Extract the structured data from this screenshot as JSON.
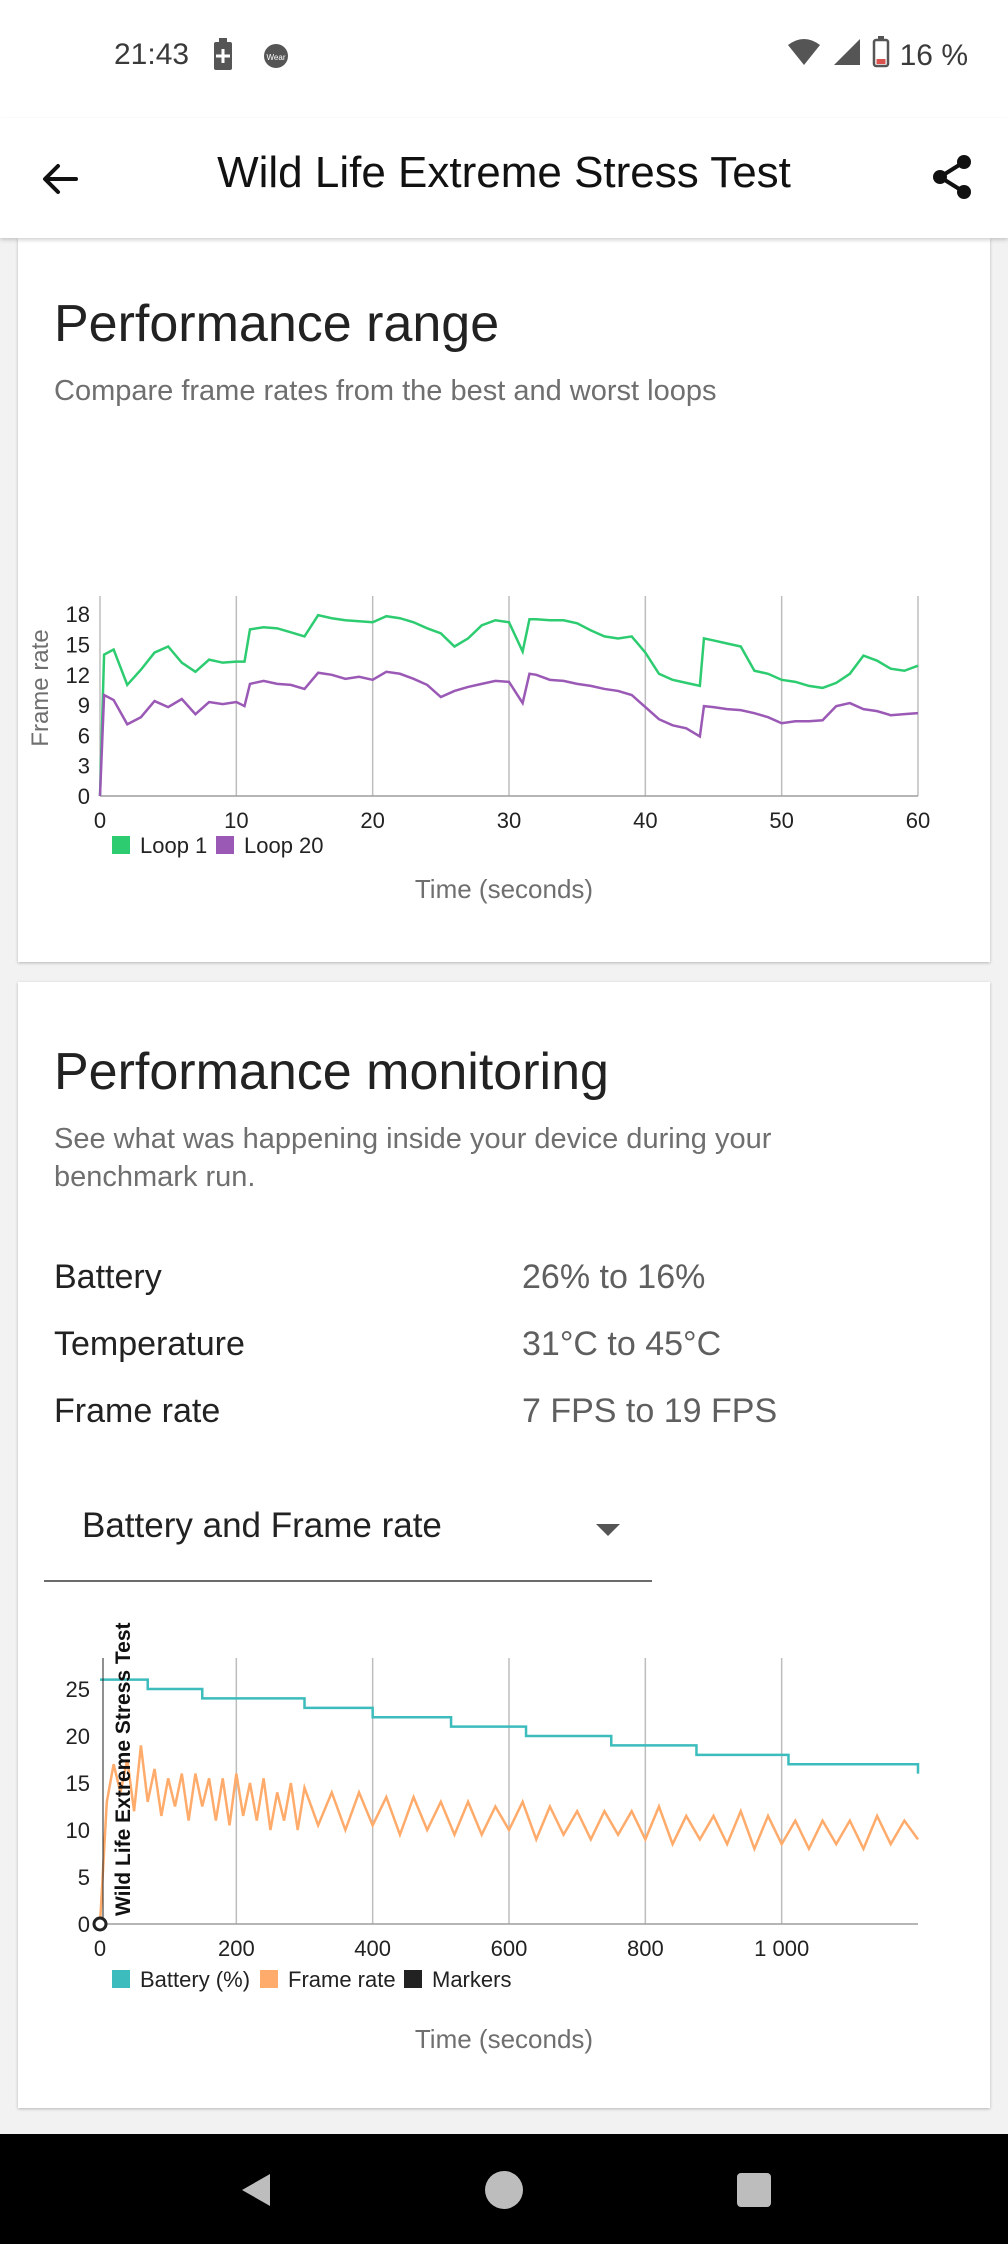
{
  "status_bar": {
    "time": "21:43",
    "battery_percent": "16 %",
    "icons": [
      "battery-saver-icon",
      "wear-os-icon",
      "wifi-icon",
      "signal-icon",
      "battery-icon"
    ]
  },
  "app_bar": {
    "title": "Wild Life Extreme Stress Test",
    "back_icon": "arrow-left-icon",
    "share_icon": "share-icon"
  },
  "performance_range": {
    "title": "Performance range",
    "subtitle": "Compare frame rates from the best and worst loops",
    "legend": [
      "Loop 1",
      "Loop 20"
    ],
    "xlabel": "Time (seconds)",
    "ylabel": "Frame rate"
  },
  "performance_monitoring": {
    "title": "Performance monitoring",
    "subtitle": "See what was happening inside your device during your benchmark run.",
    "stats": [
      {
        "label": "Battery",
        "value": "26% to 16%"
      },
      {
        "label": "Temperature",
        "value": "31°C to 45°C"
      },
      {
        "label": "Frame rate",
        "value": "7 FPS to 19 FPS"
      }
    ],
    "dropdown": {
      "selected": "Battery and Frame rate"
    },
    "marker_label": "Wild Life Extreme Stress Test",
    "legend": [
      "Battery (%)",
      "Frame rate",
      "Markers"
    ],
    "xlabel": "Time (seconds)"
  },
  "colors": {
    "loop1": "#2ecc71",
    "loop20": "#9b59b6",
    "battery": "#3cbcbc",
    "framerate": "#ffab6b",
    "markers": "#222222"
  },
  "chart_data": [
    {
      "type": "line",
      "title": "",
      "xlabel": "Time (seconds)",
      "ylabel": "Frame rate",
      "xlim": [
        0,
        60
      ],
      "ylim": [
        0,
        20
      ],
      "xticks": [
        "0",
        "10",
        "20",
        "30",
        "40",
        "50",
        "60"
      ],
      "yticks": [
        "0",
        "3",
        "6",
        "9",
        "12",
        "15",
        "18"
      ],
      "legend_position": "bottom-left",
      "grid": "vertical",
      "series": [
        {
          "name": "Loop 1",
          "x": [
            0,
            0.3,
            1,
            2,
            3,
            4,
            5,
            6,
            7,
            8,
            9,
            10,
            10.6,
            11,
            12,
            13,
            14,
            15,
            16,
            17,
            18,
            19,
            20,
            21,
            22,
            23,
            24,
            25,
            26,
            27,
            28,
            29,
            30,
            31,
            31.5,
            32,
            33,
            34,
            35,
            36,
            37,
            38,
            39,
            40,
            41,
            42,
            43,
            44,
            44.3,
            45,
            46,
            47,
            48,
            49,
            50,
            51,
            52,
            53,
            54,
            55,
            56,
            57,
            58,
            59,
            60
          ],
          "y": [
            0,
            14,
            14.5,
            11,
            12.5,
            14.2,
            14.8,
            13.2,
            12.3,
            13.5,
            13.2,
            13.3,
            13.3,
            16.5,
            16.7,
            16.6,
            16.2,
            15.8,
            17.9,
            17.6,
            17.4,
            17.3,
            17.2,
            17.8,
            17.6,
            17.2,
            16.6,
            16.1,
            14.8,
            15.6,
            16.9,
            17.4,
            17.2,
            14.3,
            17.5,
            17.5,
            17.4,
            17.4,
            17.1,
            16.4,
            15.8,
            15.6,
            15.8,
            14.2,
            12.1,
            11.5,
            11.2,
            10.9,
            15.6,
            15.4,
            15.1,
            14.8,
            12.4,
            12.1,
            11.5,
            11.3,
            10.9,
            10.7,
            11.2,
            12.1,
            13.9,
            13.4,
            12.6,
            12.4,
            12.9
          ]
        },
        {
          "name": "Loop 20",
          "x": [
            0,
            0.3,
            1,
            2,
            3,
            4,
            5,
            6,
            7,
            8,
            9,
            10,
            10.6,
            11,
            12,
            13,
            14,
            15,
            16,
            17,
            18,
            19,
            20,
            21,
            22,
            23,
            24,
            25,
            26,
            27,
            28,
            29,
            30,
            31,
            31.5,
            32,
            33,
            34,
            35,
            36,
            37,
            38,
            39,
            40,
            41,
            42,
            43,
            44,
            44.3,
            45,
            46,
            47,
            48,
            49,
            50,
            51,
            52,
            53,
            54,
            55,
            56,
            57,
            58,
            59,
            60
          ],
          "y": [
            0,
            10,
            9.5,
            7.1,
            7.8,
            9.4,
            8.8,
            9.6,
            8.1,
            9.3,
            9.1,
            9.3,
            8.9,
            11.1,
            11.4,
            11.1,
            11.0,
            10.6,
            12.2,
            12.0,
            11.6,
            11.8,
            11.5,
            12.3,
            12.1,
            11.6,
            11.0,
            9.8,
            10.4,
            10.8,
            11.1,
            11.4,
            11.3,
            9.2,
            12.1,
            12.0,
            11.5,
            11.4,
            11.1,
            10.9,
            10.6,
            10.4,
            10.0,
            8.8,
            7.6,
            7.0,
            6.7,
            5.9,
            8.9,
            8.8,
            8.6,
            8.5,
            8.2,
            7.8,
            7.2,
            7.4,
            7.4,
            7.5,
            8.9,
            9.2,
            8.6,
            8.4,
            8.0,
            8.1,
            8.2
          ]
        }
      ]
    },
    {
      "type": "line",
      "title": "",
      "xlabel": "Time (seconds)",
      "ylabel": "",
      "xlim": [
        0,
        1200
      ],
      "ylim": [
        0,
        28
      ],
      "xticks": [
        "0",
        "200",
        "400",
        "600",
        "800",
        "1 000"
      ],
      "yticks": [
        "0",
        "5",
        "10",
        "15",
        "20",
        "25"
      ],
      "legend_position": "bottom-left",
      "grid": "vertical",
      "series": [
        {
          "name": "Battery (%)",
          "x": [
            0,
            70,
            150,
            300,
            400,
            515,
            625,
            750,
            875,
            1010,
            1200
          ],
          "y": [
            26,
            25,
            24,
            23,
            22,
            21,
            20,
            19,
            18,
            17,
            16
          ]
        },
        {
          "name": "Frame rate",
          "x": [
            0,
            10,
            20,
            30,
            40,
            50,
            60,
            70,
            80,
            90,
            100,
            110,
            120,
            130,
            140,
            150,
            160,
            170,
            180,
            190,
            200,
            210,
            220,
            230,
            240,
            250,
            260,
            270,
            280,
            290,
            300,
            320,
            340,
            360,
            380,
            400,
            420,
            440,
            460,
            480,
            500,
            520,
            540,
            560,
            580,
            600,
            620,
            640,
            660,
            680,
            700,
            720,
            740,
            760,
            780,
            800,
            820,
            840,
            860,
            880,
            900,
            920,
            940,
            960,
            980,
            1000,
            1020,
            1040,
            1060,
            1080,
            1100,
            1120,
            1140,
            1160,
            1180,
            1200
          ],
          "y": [
            0,
            13,
            17,
            14,
            17.5,
            12,
            19,
            13,
            16.5,
            11.5,
            15.5,
            12.5,
            16,
            11,
            16,
            12.5,
            15.5,
            11,
            15.5,
            10.5,
            16,
            11.5,
            15,
            11,
            15.5,
            10,
            14,
            11,
            15,
            10,
            14.5,
            10.5,
            14,
            10,
            14,
            10.5,
            13.5,
            9.5,
            13.5,
            10,
            13,
            9.5,
            13,
            9.5,
            12.5,
            10,
            13,
            9,
            12.5,
            9.5,
            12,
            9,
            12,
            9.5,
            12,
            9,
            12.5,
            8.5,
            11.5,
            9,
            11.5,
            8.5,
            12,
            8,
            11.5,
            8.5,
            11,
            8,
            11,
            8.5,
            11,
            8,
            11.5,
            8.5,
            11,
            9
          ]
        },
        {
          "name": "Markers",
          "x": [
            0
          ],
          "y": [
            0
          ]
        }
      ]
    }
  ]
}
